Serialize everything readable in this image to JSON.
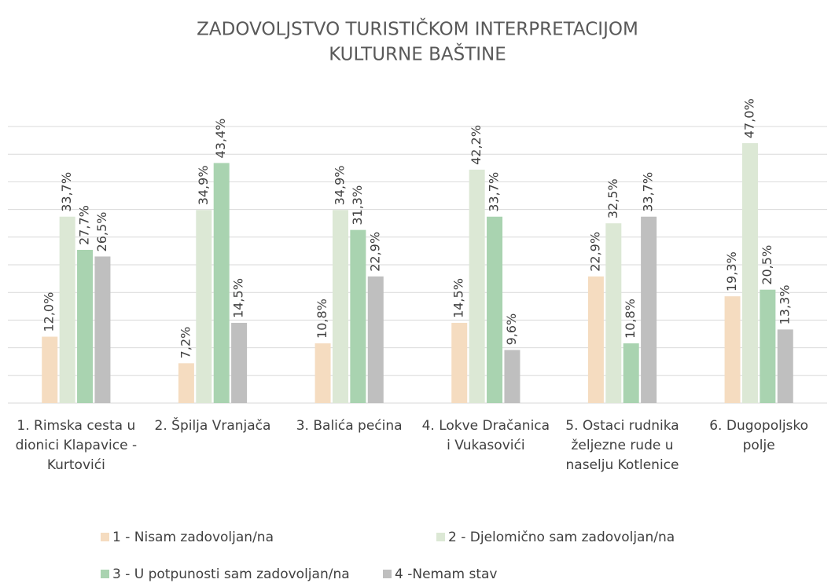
{
  "chart_data": {
    "type": "bar",
    "title": "ZADOVOLJSTVO TURISTIČKOM INTERPRETACIJOM",
    "subtitle": "KULTURNE BAŠTINE",
    "categories": [
      "1. Rimska cesta u dionici Klapavice - Kurtovići",
      "2. Špilja Vranjača",
      "3. Balića pećina",
      "4. Lokve Dračanica i Vukasovići",
      "5. Ostaci rudnika željezne rude u naselju Kotlenice",
      "6. Dugopoljsko polje"
    ],
    "series": [
      {
        "name": "1 - Nisam zadovoljan/na",
        "color": "#f5dcc0",
        "values": [
          12.0,
          7.2,
          10.8,
          14.5,
          22.9,
          19.3
        ],
        "value_labels": [
          "12,0%",
          "7,2%",
          "10,8%",
          "14,5%",
          "22,9%",
          "19,3%"
        ]
      },
      {
        "name": "2 - Djelomično sam zadovoljan/na",
        "color": "#dce8d5",
        "values": [
          33.7,
          34.9,
          34.9,
          42.2,
          32.5,
          47.0
        ],
        "value_labels": [
          "33,7%",
          "34,9%",
          "34,9%",
          "42,2%",
          "32,5%",
          "47,0%"
        ]
      },
      {
        "name": "3 - U potpunosti sam zadovoljan/na",
        "color": "#a9d3b0",
        "values": [
          27.7,
          43.4,
          31.3,
          33.7,
          10.8,
          20.5
        ],
        "value_labels": [
          "27,7%",
          "43,4%",
          "31,3%",
          "33,7%",
          "10,8%",
          "20,5%"
        ]
      },
      {
        "name": "4 -Nemam stav",
        "color": "#bfbfbf",
        "values": [
          26.5,
          14.5,
          22.9,
          9.6,
          33.7,
          13.3
        ],
        "value_labels": [
          "26,5%",
          "14,5%",
          "22,9%",
          "9,6%",
          "33,7%",
          "13,3%"
        ]
      }
    ],
    "ylim": [
      0,
      50
    ],
    "yticks": [
      0,
      5,
      10,
      15,
      20,
      25,
      30,
      35,
      40,
      45,
      50
    ],
    "grid": true
  }
}
